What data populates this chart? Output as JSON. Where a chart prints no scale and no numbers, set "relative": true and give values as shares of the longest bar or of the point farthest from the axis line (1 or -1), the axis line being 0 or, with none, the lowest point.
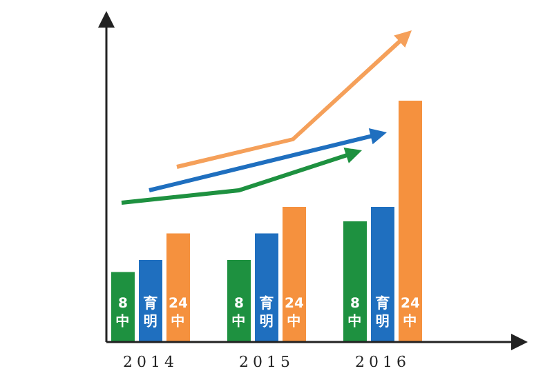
{
  "chart_data": {
    "type": "bar",
    "relative": true,
    "categories": [
      "2014",
      "2015",
      "2016"
    ],
    "series": [
      {
        "name": "8中",
        "color": "#1e9140",
        "values": [
          0.29,
          0.34,
          0.5
        ]
      },
      {
        "name": "育明",
        "color": "#1f6fbf",
        "values": [
          0.34,
          0.45,
          0.56
        ]
      },
      {
        "name": "24中",
        "color": "#f5913e",
        "values": [
          0.45,
          0.56,
          1
        ]
      }
    ]
  }
}
